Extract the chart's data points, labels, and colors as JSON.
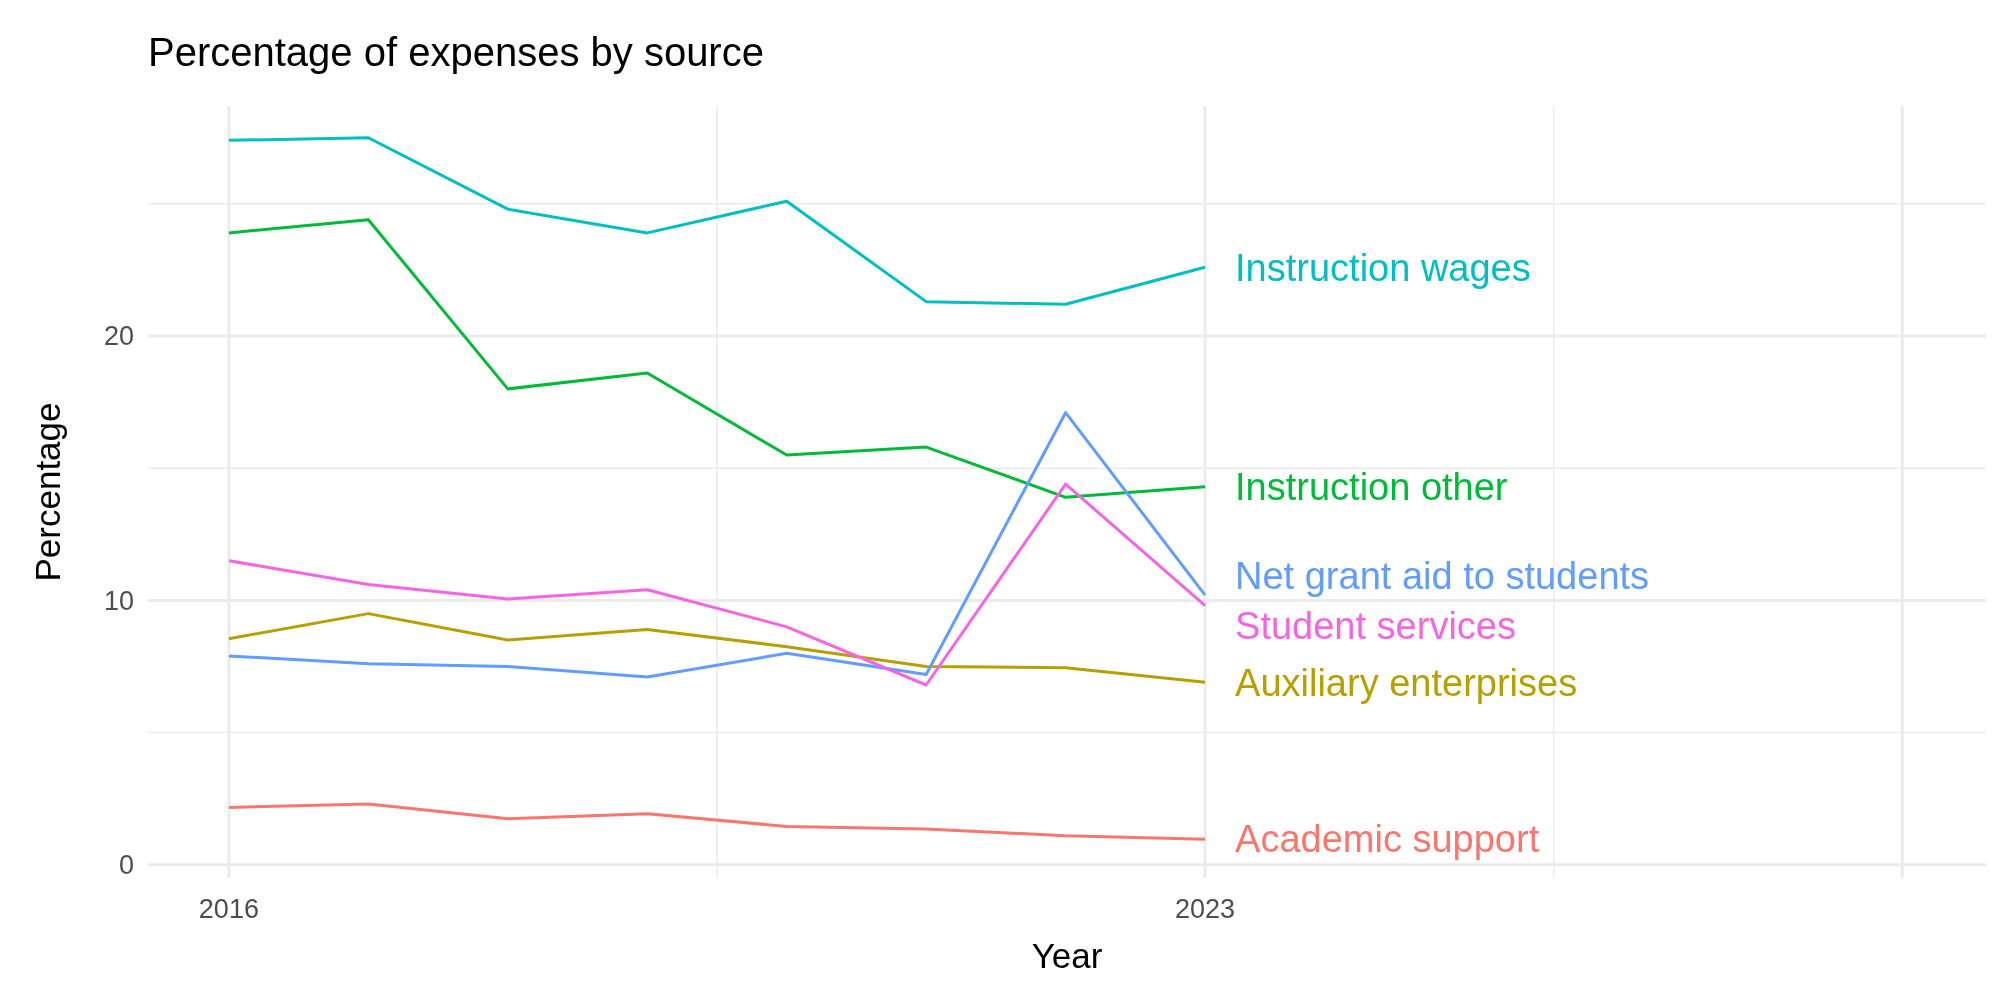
{
  "chart_data": {
    "type": "line",
    "title": "Percentage of expenses by source",
    "xlabel": "Year",
    "ylabel": "Percentage",
    "x": [
      2016,
      2017,
      2018,
      2019,
      2020,
      2021,
      2022,
      2023
    ],
    "xlim": [
      2015.42,
      2028.6
    ],
    "xticks": [
      2016,
      2023,
      {
        "value": 2028,
        "label": null
      }
    ],
    "ylim": [
      -0.5,
      28.7
    ],
    "yticks": [
      0,
      {
        "value": 5,
        "label": null
      },
      10,
      {
        "value": 15,
        "label": null
      },
      20,
      {
        "value": 25,
        "label": null
      }
    ],
    "grid": true,
    "legend": false,
    "series": [
      {
        "name": "Academic support",
        "color": "#f8766d",
        "values": [
          2.17,
          2.3,
          1.74,
          1.93,
          1.45,
          1.35,
          1.1,
          0.97
        ]
      },
      {
        "name": "Auxiliary enterprises",
        "color": "#b79f00",
        "values": [
          8.55,
          9.5,
          8.5,
          8.9,
          8.25,
          7.5,
          7.45,
          6.9
        ]
      },
      {
        "name": "Instruction other",
        "color": "#00ba38",
        "values": [
          23.9,
          24.4,
          18.0,
          18.6,
          15.5,
          15.8,
          13.9,
          14.3
        ]
      },
      {
        "name": "Instruction wages",
        "color": "#00bfc4",
        "values": [
          27.4,
          27.5,
          24.8,
          23.9,
          25.1,
          21.3,
          21.2,
          22.6
        ]
      },
      {
        "name": "Net grant aid to students",
        "color": "#619cff",
        "values": [
          7.9,
          7.6,
          7.5,
          7.1,
          8.0,
          7.2,
          17.1,
          10.2
        ]
      },
      {
        "name": "Student services",
        "color": "#f564e3",
        "values": [
          11.5,
          10.6,
          10.05,
          10.4,
          9.0,
          6.8,
          14.4,
          9.8
        ]
      }
    ]
  }
}
